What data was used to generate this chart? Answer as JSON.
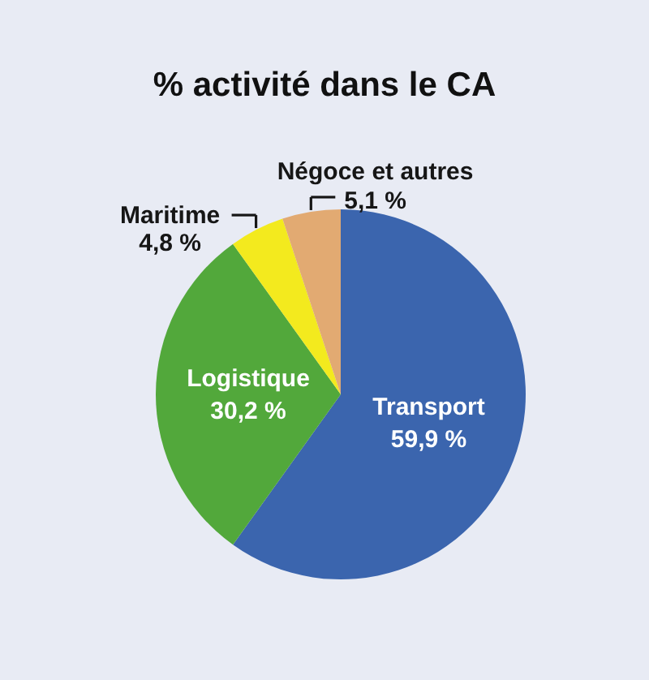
{
  "chart_data": {
    "type": "pie",
    "title": "% activité dans le CA",
    "categories": [
      "Transport",
      "Logistique",
      "Maritime",
      "Négoce et autres"
    ],
    "values": [
      59.9,
      30.2,
      4.8,
      5.1
    ],
    "colors": [
      "#3b65ae",
      "#52a83b",
      "#f3ea1e",
      "#e2aa72"
    ],
    "value_labels": [
      "59,9 %",
      "30,2 %",
      "4,8 %",
      "5,1 %"
    ]
  }
}
